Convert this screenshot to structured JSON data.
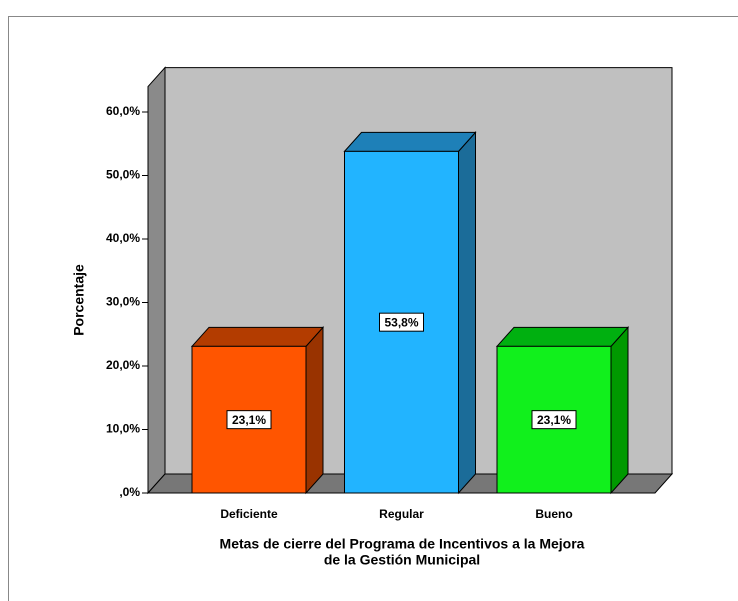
{
  "chart_data": {
    "type": "bar3d",
    "categories": [
      "Deficiente",
      "Regular",
      "Bueno"
    ],
    "values": [
      23.1,
      53.8,
      23.1
    ],
    "value_labels": [
      "23,1%",
      "53,8%",
      "23,1%"
    ],
    "colors": [
      "#ff5500",
      "#22b4ff",
      "#11f01c"
    ],
    "side_colors": [
      "#993300",
      "#1b6c99",
      "#009900"
    ],
    "top_colors": [
      "#b33c00",
      "#1e80b8",
      "#00b010"
    ],
    "ylabel": "Porcentaje",
    "xlabel": [
      "Metas de cierre del Programa de Incentivos a la Mejora",
      "de la Gestión Municipal"
    ],
    "ylim": [
      0,
      64
    ],
    "yticks": [
      {
        "value": 0,
        "label": ",0%"
      },
      {
        "value": 10,
        "label": "10,0%"
      },
      {
        "value": 20,
        "label": "20,0%"
      },
      {
        "value": 30,
        "label": "30,0%"
      },
      {
        "value": 40,
        "label": "40,0%"
      },
      {
        "value": 50,
        "label": "50,0%"
      },
      {
        "value": 60,
        "label": "60,0%"
      }
    ]
  }
}
